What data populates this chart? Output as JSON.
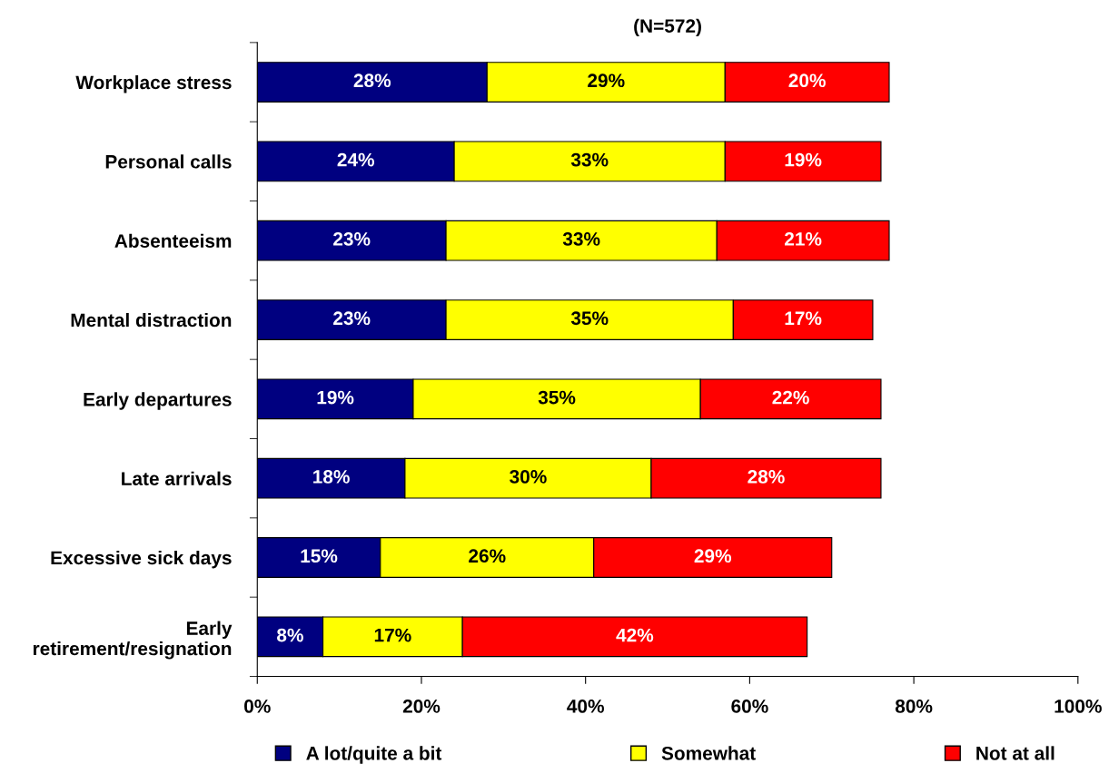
{
  "chart_data": {
    "type": "bar",
    "orientation": "horizontal",
    "stacked": true,
    "title": "(N=572)",
    "categories": [
      "Workplace stress",
      "Personal calls",
      "Absenteeism",
      "Mental distraction",
      "Early departures",
      "Late arrivals",
      "Excessive sick days",
      "Early\nretirement/resignation"
    ],
    "series": [
      {
        "name": "A lot/quite a bit",
        "color": "#000080",
        "values": [
          28,
          24,
          23,
          23,
          19,
          18,
          15,
          8
        ],
        "value_labels": [
          "28%",
          "24%",
          "23%",
          "23%",
          "19%",
          "18%",
          "15%",
          "8%"
        ]
      },
      {
        "name": "Somewhat",
        "color": "#ffff00",
        "values": [
          29,
          33,
          33,
          35,
          35,
          30,
          26,
          17
        ],
        "value_labels": [
          "29%",
          "33%",
          "33%",
          "35%",
          "35%",
          "30%",
          "26%",
          "17%"
        ]
      },
      {
        "name": "Not at all",
        "color": "#ff0000",
        "values": [
          20,
          19,
          21,
          17,
          22,
          28,
          29,
          42
        ],
        "value_labels": [
          "20%",
          "19%",
          "21%",
          "17%",
          "22%",
          "28%",
          "29%",
          "42%"
        ]
      }
    ],
    "xlim": [
      0,
      100
    ],
    "xticks": [
      {
        "value": 0,
        "label": "0%"
      },
      {
        "value": 20,
        "label": "20%"
      },
      {
        "value": 40,
        "label": "40%"
      },
      {
        "value": 60,
        "label": "60%"
      },
      {
        "value": 80,
        "label": "80%"
      },
      {
        "value": 100,
        "label": "100%"
      }
    ],
    "grid": false,
    "legend": "bottom"
  }
}
